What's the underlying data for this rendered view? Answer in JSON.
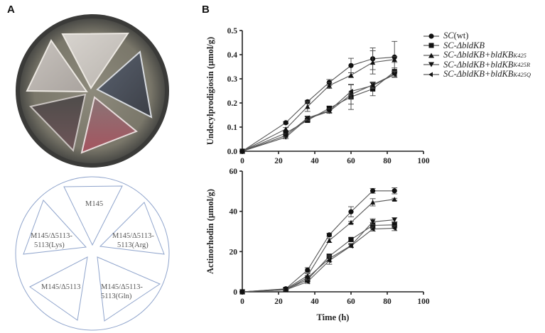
{
  "panels": {
    "a_label": "A",
    "b_label": "B"
  },
  "plate_map": {
    "sectors": [
      {
        "label_lines": [
          "M145"
        ]
      },
      {
        "label_lines": [
          "M145/Δ5113-",
          "5113(Arg)"
        ]
      },
      {
        "label_lines": [
          "M145/Δ5113-",
          "5113(Gln)"
        ]
      },
      {
        "label_lines": [
          "M145/Δ5113"
        ]
      },
      {
        "label_lines": [
          "M145/Δ5113-",
          "5113(Lys)"
        ]
      }
    ],
    "line_color": "#8fa4cc"
  },
  "legend": [
    {
      "prefix": "SC",
      "suffix": "(wt)",
      "sup": "",
      "marker": "circle"
    },
    {
      "prefix": "SC-ΔbldKB",
      "suffix": "",
      "sup": "",
      "marker": "square"
    },
    {
      "prefix": "SC-ΔbldKB+bldKB",
      "suffix": "",
      "sup": "K425",
      "marker": "triangle-up"
    },
    {
      "prefix": "SC-ΔbldKB+bldKB",
      "suffix": "",
      "sup": "K425R",
      "marker": "triangle-down"
    },
    {
      "prefix": "SC-ΔbldKB+bldKB",
      "suffix": "",
      "sup": "K425Q",
      "marker": "diamond-left"
    }
  ],
  "chart_data": [
    {
      "type": "line",
      "title": "",
      "xlabel": "",
      "ylabel": "Undecylprodigiosin (μmol/g)",
      "x": [
        0,
        24,
        36,
        48,
        60,
        72,
        84
      ],
      "xlim": [
        0,
        100
      ],
      "ylim": [
        0,
        0.5
      ],
      "xticks": [
        0,
        20,
        40,
        60,
        80,
        100
      ],
      "yticks": [
        0.0,
        0.1,
        0.2,
        0.3,
        0.4,
        0.5
      ],
      "ytick_labels": [
        "0.0",
        "0.1",
        "0.2",
        "0.3",
        "0.4",
        "0.5"
      ],
      "grid": false,
      "legend_position": "right",
      "series": [
        {
          "name": "SC(wt)",
          "marker": "circle",
          "values": [
            0,
            0.118,
            0.205,
            0.285,
            0.355,
            0.383,
            0.39
          ],
          "errors": [
            0,
            0.005,
            0.006,
            0.012,
            0.03,
            0.045,
            0.065
          ]
        },
        {
          "name": "SC-ΔbldKB",
          "marker": "square",
          "values": [
            0,
            0.075,
            0.128,
            0.178,
            0.225,
            0.258,
            0.33
          ],
          "errors": [
            0,
            0.006,
            0.006,
            0.008,
            0.052,
            0.028,
            0.015
          ]
        },
        {
          "name": "SC-ΔbldKB+bldKB^K425",
          "marker": "triangle-up",
          "values": [
            0,
            0.092,
            0.185,
            0.272,
            0.315,
            0.368,
            0.38
          ],
          "errors": [
            0,
            0.006,
            0.02,
            0.012,
            0.01,
            0.048,
            0.012
          ]
        },
        {
          "name": "SC-ΔbldKB+bldKB^K425R",
          "marker": "triangle-down",
          "values": [
            0,
            0.058,
            0.135,
            0.165,
            0.235,
            0.275,
            0.32
          ],
          "errors": [
            0,
            0.006,
            0.008,
            0.008,
            0.04,
            0.012,
            0.012
          ]
        },
        {
          "name": "SC-ΔbldKB+bldKB^K425Q",
          "marker": "diamond-left",
          "values": [
            0,
            0.065,
            0.138,
            0.168,
            0.248,
            0.272,
            0.318
          ],
          "errors": [
            0,
            0.006,
            0.008,
            0.008,
            0.028,
            0.012,
            0.012
          ]
        }
      ]
    },
    {
      "type": "line",
      "title": "",
      "xlabel": "Time (h)",
      "ylabel": "Actinorhodin (μmol/g)",
      "x": [
        0,
        24,
        36,
        48,
        60,
        72,
        84
      ],
      "xlim": [
        0,
        100
      ],
      "ylim": [
        0,
        60
      ],
      "xticks": [
        0,
        20,
        40,
        60,
        80,
        100
      ],
      "yticks": [
        0,
        20,
        40,
        60
      ],
      "ytick_labels": [
        "0",
        "20",
        "40",
        "60"
      ],
      "grid": false,
      "series": [
        {
          "name": "SC(wt)",
          "marker": "circle",
          "values": [
            0,
            1.5,
            10.8,
            28.3,
            39.8,
            50.2,
            50.2
          ],
          "errors": [
            0,
            0.3,
            1.2,
            0.8,
            2.5,
            1.2,
            1.5
          ]
        },
        {
          "name": "SC-ΔbldKB",
          "marker": "square",
          "values": [
            0,
            1.2,
            6.0,
            17.7,
            26.0,
            33.0,
            33.3
          ],
          "errors": [
            0,
            0.3,
            0.8,
            1.0,
            0.8,
            1.5,
            1.5
          ]
        },
        {
          "name": "SC-ΔbldKB+bldKB^K425",
          "marker": "triangle-up",
          "values": [
            0,
            1.4,
            8.0,
            25.5,
            34.5,
            44.5,
            46.0
          ],
          "errors": [
            0,
            0.3,
            1.0,
            1.0,
            0.5,
            1.8,
            0.5
          ]
        },
        {
          "name": "SC-ΔbldKB+bldKB^K425R",
          "marker": "triangle-down",
          "values": [
            0,
            1.0,
            7.0,
            16.5,
            23.0,
            34.8,
            35.8
          ],
          "errors": [
            0,
            0.3,
            0.8,
            1.5,
            0.8,
            1.5,
            1.0
          ]
        },
        {
          "name": "SC-ΔbldKB+bldKB^K425Q",
          "marker": "diamond-left",
          "values": [
            0,
            1.0,
            5.0,
            15.5,
            22.8,
            31.2,
            31.6
          ],
          "errors": [
            0,
            0.3,
            0.8,
            1.8,
            0.8,
            1.0,
            1.2
          ]
        }
      ]
    }
  ]
}
